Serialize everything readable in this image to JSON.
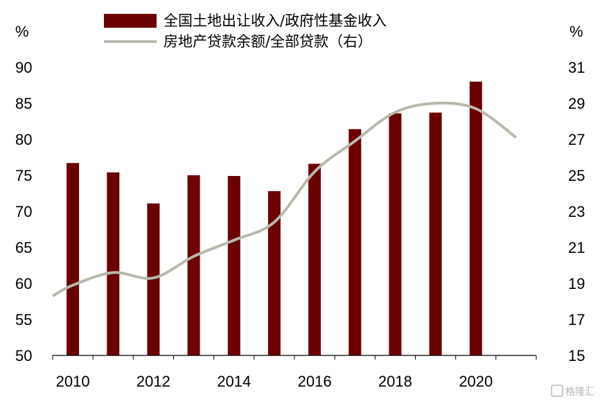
{
  "chart_data": {
    "type": "bar+line",
    "x": [
      2010,
      2011,
      2012,
      2013,
      2014,
      2015,
      2016,
      2017,
      2018,
      2019,
      2020,
      2021
    ],
    "x_tick_labels": [
      "2010",
      "2012",
      "2014",
      "2016",
      "2018",
      "2020"
    ],
    "series": [
      {
        "name": "全国土地出让收入/政府性基金收入",
        "type": "bar",
        "axis": "left",
        "color": "#6b0000",
        "values": [
          76.7,
          75.4,
          71.1,
          75.0,
          74.9,
          72.8,
          76.6,
          81.4,
          83.6,
          83.7,
          88.0,
          null
        ]
      },
      {
        "name": "房地产贷款余额/全部贷款（右）",
        "type": "line",
        "axis": "right",
        "color": "#b8b8ac",
        "values": [
          18.9,
          19.6,
          19.3,
          20.5,
          21.4,
          22.4,
          25.2,
          26.9,
          28.5,
          29.0,
          28.7,
          27.1
        ]
      }
    ],
    "left_axis": {
      "unit": "%",
      "ylim": [
        50,
        90
      ],
      "ticks": [
        90,
        85,
        80,
        75,
        70,
        65,
        60,
        55,
        50
      ]
    },
    "right_axis": {
      "unit": "%",
      "ylim": [
        15,
        31
      ],
      "ticks": [
        31,
        29,
        27,
        25,
        23,
        21,
        19,
        17,
        15
      ]
    },
    "grid": false,
    "legend": "top-center"
  },
  "watermark": {
    "text": "格隆汇",
    "icon": "g-logo-icon"
  }
}
